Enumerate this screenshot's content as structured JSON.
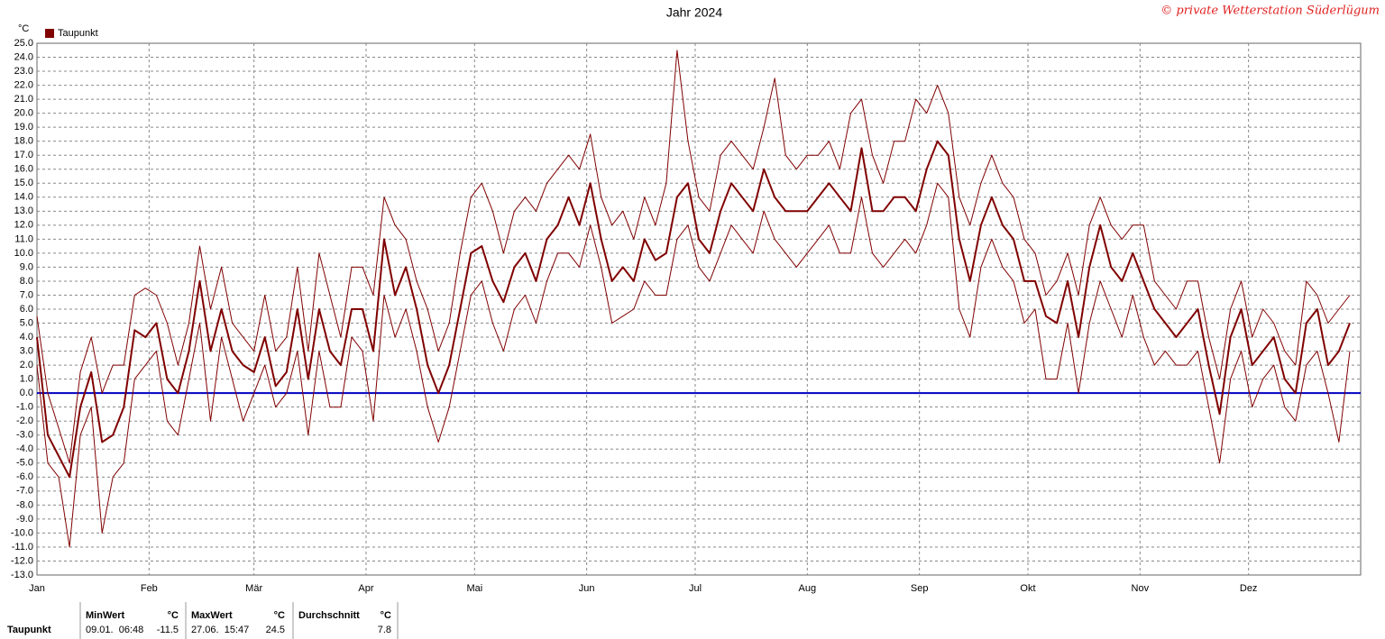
{
  "chart_data": {
    "type": "line",
    "title": "Jahr 2024",
    "y_label": "°C",
    "credit": "© private Wetterstation Süderlügum",
    "xlim": [
      1,
      367
    ],
    "ylim": [
      -13,
      25
    ],
    "grid": true,
    "legend": "top-left",
    "xticks": [
      {
        "value": 1,
        "label": "Jan"
      },
      {
        "value": 32,
        "label": "Feb"
      },
      {
        "value": 61,
        "label": "Mär"
      },
      {
        "value": 92,
        "label": "Apr"
      },
      {
        "value": 122,
        "label": "Mai"
      },
      {
        "value": 153,
        "label": "Jun"
      },
      {
        "value": 183,
        "label": "Jul"
      },
      {
        "value": 214,
        "label": "Aug"
      },
      {
        "value": 245,
        "label": "Sep"
      },
      {
        "value": 275,
        "label": "Okt"
      },
      {
        "value": 306,
        "label": "Nov"
      },
      {
        "value": 336,
        "label": "Dez"
      }
    ],
    "yticks": [
      {
        "value": -13,
        "label": "-13.0"
      },
      {
        "value": -12,
        "label": "-12.0"
      },
      {
        "value": -11,
        "label": "-11.0"
      },
      {
        "value": -10,
        "label": "-10.0"
      },
      {
        "value": -9,
        "label": "-9.0"
      },
      {
        "value": -8,
        "label": "-8.0"
      },
      {
        "value": -7,
        "label": "-7.0"
      },
      {
        "value": -6,
        "label": "-6.0"
      },
      {
        "value": -5,
        "label": "-5.0"
      },
      {
        "value": -4,
        "label": "-4.0"
      },
      {
        "value": -3,
        "label": "-3.0"
      },
      {
        "value": -2,
        "label": "-2.0"
      },
      {
        "value": -1,
        "label": "-1.0"
      },
      {
        "value": 0,
        "label": "0.0"
      },
      {
        "value": 1,
        "label": "1.0"
      },
      {
        "value": 2,
        "label": "2.0"
      },
      {
        "value": 3,
        "label": "3.0"
      },
      {
        "value": 4,
        "label": "4.0"
      },
      {
        "value": 5,
        "label": "5.0"
      },
      {
        "value": 6,
        "label": "6.0"
      },
      {
        "value": 7,
        "label": "7.0"
      },
      {
        "value": 8,
        "label": "8.0"
      },
      {
        "value": 9,
        "label": "9.0"
      },
      {
        "value": 10,
        "label": "10.0"
      },
      {
        "value": 11,
        "label": "11.0"
      },
      {
        "value": 12,
        "label": "12.0"
      },
      {
        "value": 13,
        "label": "13.0"
      },
      {
        "value": 14,
        "label": "14.0"
      },
      {
        "value": 15,
        "label": "15.0"
      },
      {
        "value": 16,
        "label": "16.0"
      },
      {
        "value": 17,
        "label": "17.0"
      },
      {
        "value": 18,
        "label": "18.0"
      },
      {
        "value": 19,
        "label": "19.0"
      },
      {
        "value": 20,
        "label": "20.0"
      },
      {
        "value": 21,
        "label": "21.0"
      },
      {
        "value": 22,
        "label": "22.0"
      },
      {
        "value": 23,
        "label": "23.0"
      },
      {
        "value": 24,
        "label": "24.0"
      },
      {
        "value": 25,
        "label": "25.0"
      }
    ],
    "reference_line": {
      "value": 0,
      "color": "#0000c0"
    },
    "x": [
      1,
      4,
      7,
      10,
      13,
      16,
      19,
      22,
      25,
      28,
      31,
      34,
      37,
      40,
      43,
      46,
      49,
      52,
      55,
      58,
      61,
      64,
      67,
      70,
      73,
      76,
      79,
      82,
      85,
      88,
      91,
      94,
      97,
      100,
      103,
      106,
      109,
      112,
      115,
      118,
      121,
      124,
      127,
      130,
      133,
      136,
      139,
      142,
      145,
      148,
      151,
      154,
      157,
      160,
      163,
      166,
      169,
      172,
      175,
      178,
      181,
      184,
      187,
      190,
      193,
      196,
      199,
      202,
      205,
      208,
      211,
      214,
      217,
      220,
      223,
      226,
      229,
      232,
      235,
      238,
      241,
      244,
      247,
      250,
      253,
      256,
      259,
      262,
      265,
      268,
      271,
      274,
      277,
      280,
      283,
      286,
      289,
      292,
      295,
      298,
      301,
      304,
      307,
      310,
      313,
      316,
      319,
      322,
      325,
      328,
      331,
      334,
      337,
      340,
      343,
      346,
      349,
      352,
      355,
      358,
      361,
      364
    ],
    "series": [
      {
        "name": "Taupunkt",
        "color": "#800000",
        "width": 2,
        "values": [
          4,
          -3,
          -4.5,
          -6,
          -1,
          1.5,
          -3.5,
          -3,
          -1,
          4.5,
          4,
          5,
          1,
          0,
          3,
          8,
          3,
          6,
          3,
          2,
          1.5,
          4,
          0.5,
          1.5,
          6,
          1,
          6,
          3,
          2,
          6,
          6,
          3,
          11,
          7,
          9,
          6,
          2,
          0,
          2,
          6,
          10,
          10.5,
          8,
          6.5,
          9,
          10,
          8,
          11,
          12,
          14,
          12,
          15,
          11,
          8,
          9,
          8,
          11,
          9.5,
          10,
          14,
          15,
          11,
          10,
          13,
          15,
          14,
          13,
          16,
          14,
          13,
          13,
          13,
          14,
          15,
          14,
          13,
          17.5,
          13,
          13,
          14,
          14,
          13,
          16,
          18,
          17,
          11,
          8,
          12,
          14,
          12,
          11,
          8,
          8,
          5.5,
          5,
          8,
          4,
          9,
          12,
          9,
          8,
          10,
          8,
          6,
          5,
          4,
          5,
          6,
          2,
          -1.5,
          4,
          6,
          2,
          3,
          4,
          1,
          0,
          5,
          6,
          2,
          3,
          5
        ]
      },
      {
        "color": "#800000",
        "width": 1,
        "values": [
          2,
          -5,
          -6,
          -11,
          -3,
          -1,
          -10,
          -6,
          -5,
          1,
          2,
          3,
          -2,
          -3,
          1,
          5,
          -2,
          4,
          1,
          -2,
          0,
          2,
          -1,
          0,
          3,
          -3,
          3,
          -1,
          -1,
          4,
          3,
          -2,
          7,
          4,
          6,
          3,
          -1,
          -3.5,
          -1,
          3,
          7,
          8,
          5,
          3,
          6,
          7,
          5,
          8,
          10,
          10,
          9,
          12,
          9,
          5,
          5.5,
          6,
          8,
          7,
          7,
          11,
          12,
          9,
          8,
          10,
          12,
          11,
          10,
          13,
          11,
          10,
          9,
          10,
          11,
          12,
          10,
          10,
          14,
          10,
          9,
          10,
          11,
          10,
          12,
          15,
          14,
          6,
          4,
          9,
          11,
          9,
          8,
          5,
          6,
          1,
          1,
          5,
          0,
          5,
          8,
          6,
          4,
          7,
          4,
          2,
          3,
          2,
          2,
          3,
          -1,
          -5,
          1,
          3,
          -1,
          1,
          2,
          -1,
          -2,
          2,
          3,
          0,
          -3.5,
          3
        ]
      },
      {
        "color": "#800000",
        "width": 1,
        "values": [
          5.5,
          0,
          -2.5,
          -5,
          1.5,
          4,
          0,
          2,
          2,
          7,
          7.5,
          7,
          5,
          2,
          5,
          10.5,
          6,
          9,
          5,
          4,
          3,
          7,
          3,
          4,
          9,
          3,
          10,
          7,
          4,
          9,
          9,
          7,
          14,
          12,
          11,
          8,
          6,
          3,
          5,
          10,
          14,
          15,
          13,
          10,
          13,
          14,
          13,
          15,
          16,
          17,
          16,
          18.5,
          14,
          12,
          13,
          11,
          14,
          12,
          15,
          24.5,
          18,
          14,
          13,
          17,
          18,
          17,
          16,
          19,
          22.5,
          17,
          16,
          17,
          17,
          18,
          16,
          20,
          21,
          17,
          15,
          18,
          18,
          21,
          20,
          22,
          20,
          14,
          12,
          15,
          17,
          15,
          14,
          11,
          10,
          7,
          8,
          10,
          7,
          12,
          14,
          12,
          11,
          12,
          12,
          8,
          7,
          6,
          8,
          8,
          4,
          1,
          6,
          8,
          4,
          6,
          5,
          3,
          2,
          8,
          7,
          5,
          6,
          7
        ]
      }
    ]
  },
  "stats_table": {
    "headers": [
      "MinWert",
      "°C",
      "MaxWert",
      "°C",
      "Durchschnitt",
      "°C"
    ],
    "row": {
      "label": "Taupunkt",
      "cells": [
        "09.01.  06:48",
        "-11.5",
        "27.06.  15:47",
        "24.5",
        "7.8"
      ]
    }
  }
}
